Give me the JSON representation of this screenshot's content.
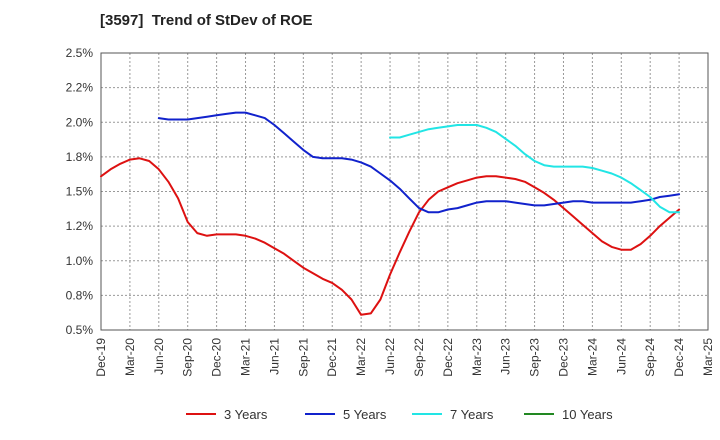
{
  "title": "[3597]  Trend of StDev of ROE",
  "chart_data": {
    "type": "line",
    "title": "[3597]  Trend of StDev of ROE",
    "xlabel": "",
    "ylabel": "",
    "x_ticks": [
      "Dec-19",
      "Mar-20",
      "Jun-20",
      "Sep-20",
      "Dec-20",
      "Mar-21",
      "Jun-21",
      "Sep-21",
      "Dec-21",
      "Mar-22",
      "Jun-22",
      "Sep-22",
      "Dec-22",
      "Mar-23",
      "Jun-23",
      "Sep-23",
      "Dec-23",
      "Mar-24",
      "Jun-24",
      "Sep-24",
      "Dec-24",
      "Mar-25"
    ],
    "y_ticks": [
      "0.5%",
      "0.8%",
      "1.0%",
      "1.2%",
      "1.5%",
      "1.8%",
      "2.0%",
      "2.2%",
      "2.5%"
    ],
    "ylim": [
      0.5,
      2.5
    ],
    "y_unit": "%",
    "grid": true,
    "legend_position": "bottom",
    "series": [
      {
        "name": "3 Years",
        "color": "#dd1111",
        "points": [
          [
            "2019-12",
            1.61
          ],
          [
            "2020-01",
            1.66
          ],
          [
            "2020-02",
            1.7
          ],
          [
            "2020-03",
            1.73
          ],
          [
            "2020-04",
            1.74
          ],
          [
            "2020-05",
            1.72
          ],
          [
            "2020-06",
            1.66
          ],
          [
            "2020-07",
            1.57
          ],
          [
            "2020-08",
            1.45
          ],
          [
            "2020-09",
            1.28
          ],
          [
            "2020-10",
            1.2
          ],
          [
            "2020-11",
            1.18
          ],
          [
            "2020-12",
            1.19
          ],
          [
            "2021-01",
            1.19
          ],
          [
            "2021-02",
            1.19
          ],
          [
            "2021-03",
            1.18
          ],
          [
            "2021-04",
            1.16
          ],
          [
            "2021-05",
            1.13
          ],
          [
            "2021-06",
            1.09
          ],
          [
            "2021-07",
            1.05
          ],
          [
            "2021-08",
            1.0
          ],
          [
            "2021-09",
            0.95
          ],
          [
            "2021-10",
            0.91
          ],
          [
            "2021-11",
            0.87
          ],
          [
            "2021-12",
            0.84
          ],
          [
            "2022-01",
            0.79
          ],
          [
            "2022-02",
            0.72
          ],
          [
            "2022-03",
            0.61
          ],
          [
            "2022-04",
            0.62
          ],
          [
            "2022-05",
            0.72
          ],
          [
            "2022-06",
            0.9
          ],
          [
            "2022-07",
            1.06
          ],
          [
            "2022-08",
            1.21
          ],
          [
            "2022-09",
            1.35
          ],
          [
            "2022-10",
            1.44
          ],
          [
            "2022-11",
            1.5
          ],
          [
            "2022-12",
            1.53
          ],
          [
            "2023-01",
            1.56
          ],
          [
            "2023-02",
            1.58
          ],
          [
            "2023-03",
            1.6
          ],
          [
            "2023-04",
            1.61
          ],
          [
            "2023-05",
            1.61
          ],
          [
            "2023-06",
            1.6
          ],
          [
            "2023-07",
            1.59
          ],
          [
            "2023-08",
            1.57
          ],
          [
            "2023-09",
            1.53
          ],
          [
            "2023-10",
            1.49
          ],
          [
            "2023-11",
            1.44
          ],
          [
            "2023-12",
            1.38
          ],
          [
            "2024-01",
            1.32
          ],
          [
            "2024-02",
            1.26
          ],
          [
            "2024-03",
            1.2
          ],
          [
            "2024-04",
            1.14
          ],
          [
            "2024-05",
            1.1
          ],
          [
            "2024-06",
            1.08
          ],
          [
            "2024-07",
            1.08
          ],
          [
            "2024-08",
            1.12
          ],
          [
            "2024-09",
            1.18
          ],
          [
            "2024-10",
            1.25
          ],
          [
            "2024-11",
            1.31
          ],
          [
            "2024-12",
            1.37
          ]
        ]
      },
      {
        "name": "5 Years",
        "color": "#1122cc",
        "points": [
          [
            "2020-06",
            2.03
          ],
          [
            "2020-07",
            2.02
          ],
          [
            "2020-08",
            2.02
          ],
          [
            "2020-09",
            2.02
          ],
          [
            "2020-10",
            2.03
          ],
          [
            "2020-11",
            2.04
          ],
          [
            "2020-12",
            2.05
          ],
          [
            "2021-01",
            2.06
          ],
          [
            "2021-02",
            2.07
          ],
          [
            "2021-03",
            2.07
          ],
          [
            "2021-04",
            2.05
          ],
          [
            "2021-05",
            2.03
          ],
          [
            "2021-06",
            1.98
          ],
          [
            "2021-07",
            1.92
          ],
          [
            "2021-08",
            1.86
          ],
          [
            "2021-09",
            1.8
          ],
          [
            "2021-10",
            1.75
          ],
          [
            "2021-11",
            1.74
          ],
          [
            "2021-12",
            1.74
          ],
          [
            "2022-01",
            1.74
          ],
          [
            "2022-02",
            1.73
          ],
          [
            "2022-03",
            1.71
          ],
          [
            "2022-04",
            1.68
          ],
          [
            "2022-05",
            1.63
          ],
          [
            "2022-06",
            1.58
          ],
          [
            "2022-07",
            1.52
          ],
          [
            "2022-08",
            1.45
          ],
          [
            "2022-09",
            1.38
          ],
          [
            "2022-10",
            1.35
          ],
          [
            "2022-11",
            1.35
          ],
          [
            "2022-12",
            1.37
          ],
          [
            "2023-01",
            1.38
          ],
          [
            "2023-02",
            1.4
          ],
          [
            "2023-03",
            1.42
          ],
          [
            "2023-04",
            1.43
          ],
          [
            "2023-05",
            1.43
          ],
          [
            "2023-06",
            1.43
          ],
          [
            "2023-07",
            1.42
          ],
          [
            "2023-08",
            1.41
          ],
          [
            "2023-09",
            1.4
          ],
          [
            "2023-10",
            1.4
          ],
          [
            "2023-11",
            1.41
          ],
          [
            "2023-12",
            1.42
          ],
          [
            "2024-01",
            1.43
          ],
          [
            "2024-02",
            1.43
          ],
          [
            "2024-03",
            1.42
          ],
          [
            "2024-04",
            1.42
          ],
          [
            "2024-05",
            1.42
          ],
          [
            "2024-06",
            1.42
          ],
          [
            "2024-07",
            1.42
          ],
          [
            "2024-08",
            1.43
          ],
          [
            "2024-09",
            1.44
          ],
          [
            "2024-10",
            1.46
          ],
          [
            "2024-11",
            1.47
          ],
          [
            "2024-12",
            1.48
          ]
        ]
      },
      {
        "name": "7 Years",
        "color": "#22e5e5",
        "points": [
          [
            "2022-06",
            1.89
          ],
          [
            "2022-07",
            1.89
          ],
          [
            "2022-08",
            1.91
          ],
          [
            "2022-09",
            1.93
          ],
          [
            "2022-10",
            1.95
          ],
          [
            "2022-11",
            1.96
          ],
          [
            "2022-12",
            1.97
          ],
          [
            "2023-01",
            1.98
          ],
          [
            "2023-02",
            1.98
          ],
          [
            "2023-03",
            1.98
          ],
          [
            "2023-04",
            1.96
          ],
          [
            "2023-05",
            1.93
          ],
          [
            "2023-06",
            1.88
          ],
          [
            "2023-07",
            1.83
          ],
          [
            "2023-08",
            1.77
          ],
          [
            "2023-09",
            1.72
          ],
          [
            "2023-10",
            1.69
          ],
          [
            "2023-11",
            1.68
          ],
          [
            "2023-12",
            1.68
          ],
          [
            "2024-01",
            1.68
          ],
          [
            "2024-02",
            1.68
          ],
          [
            "2024-03",
            1.67
          ],
          [
            "2024-04",
            1.65
          ],
          [
            "2024-05",
            1.63
          ],
          [
            "2024-06",
            1.6
          ],
          [
            "2024-07",
            1.56
          ],
          [
            "2024-08",
            1.51
          ],
          [
            "2024-09",
            1.46
          ],
          [
            "2024-10",
            1.39
          ],
          [
            "2024-11",
            1.35
          ],
          [
            "2024-12",
            1.35
          ]
        ]
      },
      {
        "name": "10 Years",
        "color": "#228822",
        "points": []
      }
    ]
  }
}
